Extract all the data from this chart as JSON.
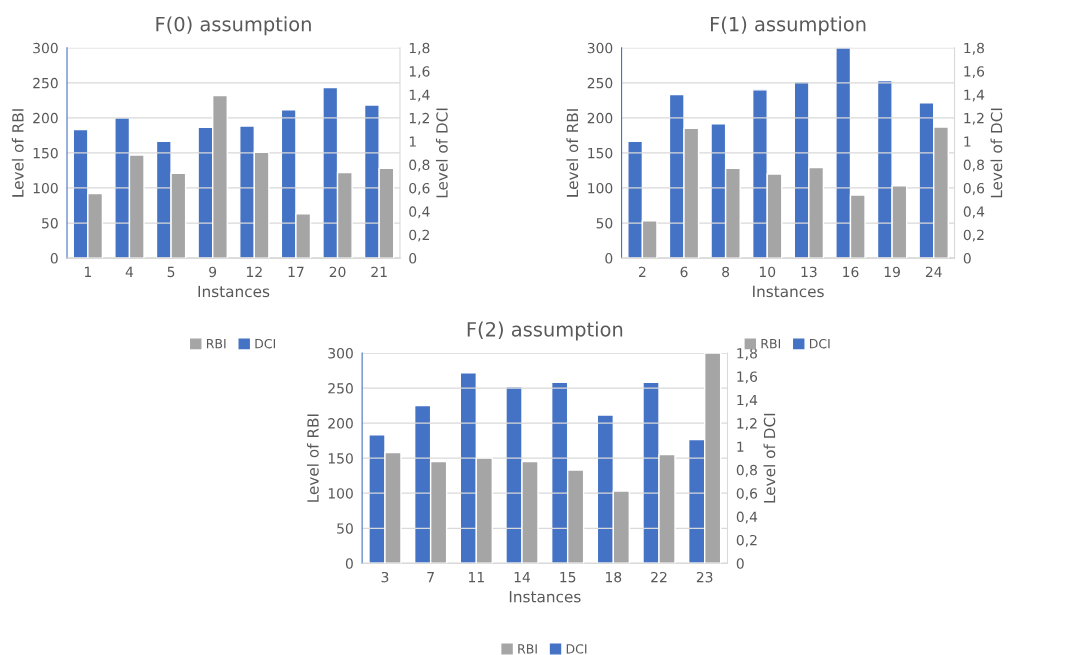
{
  "chart_data": [
    {
      "type": "bar",
      "title": "F(0) assumption",
      "xlabel": "Instances",
      "ylabel": "Level of RBI",
      "y2label": "Level of DCI",
      "categories": [
        "1",
        "4",
        "5",
        "9",
        "12",
        "17",
        "20",
        "21"
      ],
      "series": [
        {
          "name": "DCI",
          "color": "#4472c4",
          "axis": "y2",
          "values": [
            1.1,
            1.2,
            1.0,
            1.12,
            1.13,
            1.27,
            1.46,
            1.31
          ]
        },
        {
          "name": "RBI",
          "color": "#a5a5a5",
          "values": [
            92,
            147,
            121,
            232,
            151,
            63,
            122,
            128
          ]
        }
      ],
      "ylim": [
        0,
        300
      ],
      "yticks": [
        0,
        50,
        100,
        150,
        200,
        250,
        300
      ],
      "y2lim": [
        0,
        1.8
      ],
      "y2ticks": [
        0,
        {
          "value": 0.2,
          "label": "0,2"
        },
        {
          "value": 0.4,
          "label": "0,4"
        },
        {
          "value": 0.6,
          "label": "0,6"
        },
        {
          "value": 0.8,
          "label": "0,8"
        },
        1,
        {
          "value": 1.2,
          "label": "1,2"
        },
        {
          "value": 1.4,
          "label": "1,4"
        },
        {
          "value": 1.6,
          "label": "1,6"
        },
        {
          "value": 1.8,
          "label": "1,8"
        }
      ],
      "grid": "y",
      "legend": "bottom"
    },
    {
      "type": "bar",
      "title": "F(1) assumption",
      "xlabel": "Instances",
      "ylabel": "Level of RBI",
      "y2label": "Level of DCI",
      "categories": [
        "2",
        "6",
        "8",
        "10",
        "13",
        "16",
        "19",
        "24"
      ],
      "series": [
        {
          "name": "DCI",
          "color": "#4472c4",
          "axis": "y2",
          "values": [
            1.0,
            1.4,
            1.15,
            1.44,
            1.51,
            1.8,
            1.52,
            1.33
          ]
        },
        {
          "name": "RBI",
          "color": "#a5a5a5",
          "values": [
            53,
            185,
            128,
            120,
            129,
            90,
            103,
            187
          ]
        }
      ],
      "ylim": [
        0,
        300
      ],
      "yticks": [
        0,
        50,
        100,
        150,
        200,
        250,
        300
      ],
      "y2lim": [
        0,
        1.8
      ],
      "y2ticks": [
        0,
        {
          "value": 0.2,
          "label": "0,2"
        },
        {
          "value": 0.4,
          "label": "0,4"
        },
        {
          "value": 0.6,
          "label": "0,6"
        },
        {
          "value": 0.8,
          "label": "0,8"
        },
        1,
        {
          "value": 1.2,
          "label": "1,2"
        },
        {
          "value": 1.4,
          "label": "1,4"
        },
        {
          "value": 1.6,
          "label": "1,6"
        },
        {
          "value": 1.8,
          "label": "1,8"
        }
      ],
      "grid": "y",
      "legend": "bottom"
    },
    {
      "type": "bar",
      "title": "F(2) assumption",
      "xlabel": "Instances",
      "ylabel": "Level of RBI",
      "y2label": "Level of DCI",
      "categories": [
        "3",
        "7",
        "11",
        "14",
        "15",
        "18",
        "22",
        "23"
      ],
      "series": [
        {
          "name": "DCI",
          "color": "#4472c4",
          "axis": "y2",
          "values": [
            1.1,
            1.35,
            1.63,
            1.51,
            1.55,
            1.27,
            1.55,
            1.06
          ]
        },
        {
          "name": "RBI",
          "color": "#a5a5a5",
          "values": [
            158,
            145,
            150,
            145,
            133,
            103,
            155,
            300
          ]
        }
      ],
      "ylim": [
        0,
        300
      ],
      "yticks": [
        0,
        50,
        100,
        150,
        200,
        250,
        300
      ],
      "y2lim": [
        0,
        1.8
      ],
      "y2ticks": [
        0,
        {
          "value": 0.2,
          "label": "0,2"
        },
        {
          "value": 0.4,
          "label": "0,4"
        },
        {
          "value": 0.6,
          "label": "0,6"
        },
        {
          "value": 0.8,
          "label": "0,8"
        },
        1,
        {
          "value": 1.2,
          "label": "1,2"
        },
        {
          "value": 1.4,
          "label": "1,4"
        },
        {
          "value": 1.6,
          "label": "1,6"
        },
        {
          "value": 1.8,
          "label": "1,8"
        }
      ],
      "grid": "y",
      "legend": "bottom"
    }
  ]
}
